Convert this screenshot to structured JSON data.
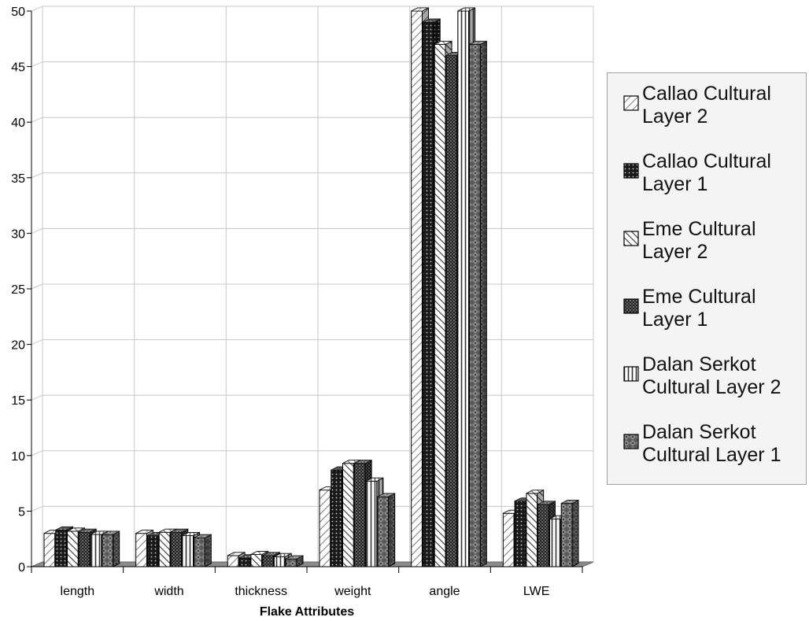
{
  "chart_data": {
    "type": "bar",
    "title": "",
    "xlabel": "Flake Attributes",
    "ylabel": "",
    "ylim": [
      0,
      50
    ],
    "yticks": [
      0,
      5,
      10,
      15,
      20,
      25,
      30,
      35,
      40,
      45,
      50
    ],
    "grid": true,
    "legend_position": "right",
    "categories": [
      "length",
      "width",
      "thickness",
      "weight",
      "angle",
      "LWE"
    ],
    "series": [
      {
        "name": "Callao Cultural Layer 2",
        "label_lines": [
          "Callao Cultural",
          "Layer 2"
        ],
        "pattern": "diag-light",
        "values": [
          3.0,
          3.0,
          1.0,
          6.9,
          50.0,
          4.8
        ]
      },
      {
        "name": "Callao Cultural Layer 1",
        "label_lines": [
          "Callao Cultural",
          "Layer 1"
        ],
        "pattern": "dots-dark",
        "values": [
          3.3,
          2.8,
          0.8,
          8.7,
          49.0,
          5.9
        ]
      },
      {
        "name": "Eme Cultural Layer 2",
        "label_lines": [
          "Eme Cultural",
          "Layer 2"
        ],
        "pattern": "diag-back",
        "values": [
          3.2,
          3.1,
          1.1,
          9.3,
          47.0,
          6.6
        ]
      },
      {
        "name": "Eme Cultural Layer 1",
        "label_lines": [
          "Eme Cultural",
          "Layer 1"
        ],
        "pattern": "checker",
        "values": [
          3.1,
          3.1,
          1.0,
          9.3,
          46.0,
          5.6
        ]
      },
      {
        "name": "Dalan Serkot Cultural Layer 2",
        "label_lines": [
          "Dalan Serkot",
          "Cultural Layer 2"
        ],
        "pattern": "vlines",
        "values": [
          2.9,
          2.8,
          0.9,
          7.7,
          50.0,
          4.3
        ]
      },
      {
        "name": "Dalan Serkot Cultural Layer 1",
        "label_lines": [
          "Dalan Serkot",
          "Cultural Layer 1"
        ],
        "pattern": "diamond",
        "values": [
          2.9,
          2.6,
          0.7,
          6.3,
          47.0,
          5.7
        ]
      }
    ]
  }
}
